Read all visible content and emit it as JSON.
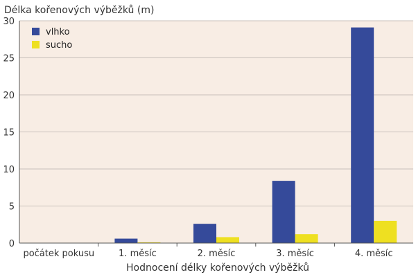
{
  "chart_data": {
    "type": "bar",
    "ylabel": "Délka kořenových výběžků (m)",
    "xlabel": "Hodnocení délky kořenových výběžků",
    "categories": [
      "počátek pokusu",
      "1. měsíc",
      "2. měsíc",
      "3. měsíc",
      "4. měsíc"
    ],
    "series": [
      {
        "name": "vlhko",
        "color": "#354a9a",
        "values": [
          0,
          0.6,
          2.6,
          8.4,
          29.1
        ]
      },
      {
        "name": "sucho",
        "color": "#eee021",
        "values": [
          0,
          0.1,
          0.8,
          1.2,
          3.0
        ]
      }
    ],
    "ylim": [
      0,
      30
    ],
    "yticks": [
      0,
      5,
      10,
      15,
      20,
      25,
      30
    ],
    "grid": true,
    "legend_position": "top-left",
    "plot_background": "#f8ede4"
  }
}
